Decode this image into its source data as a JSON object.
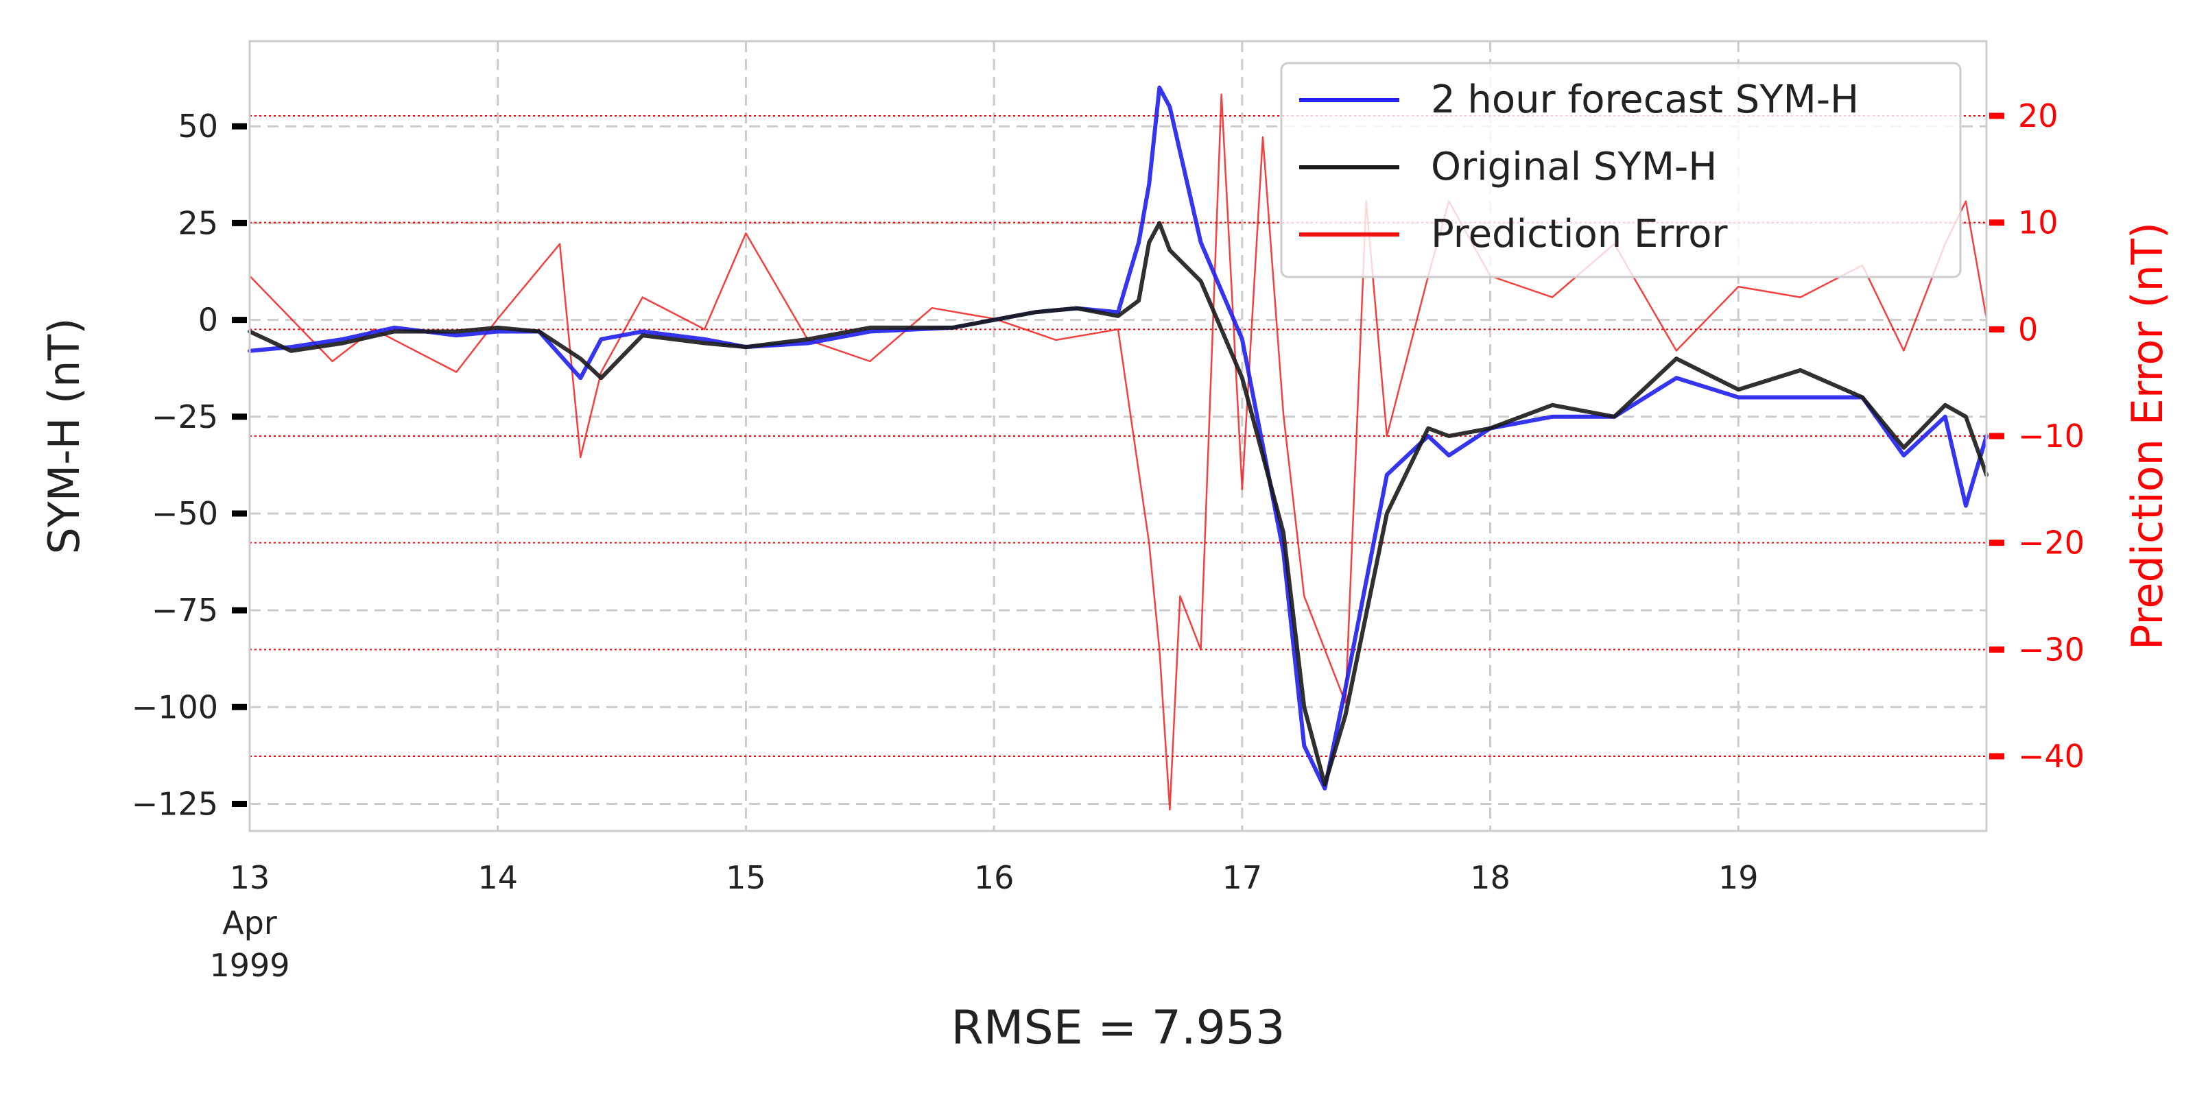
{
  "chart_data": {
    "type": "line",
    "title": "",
    "xlabel": "RMSE = 7.953",
    "ylabel": "SYM-H (nT)",
    "ylabel_right": "Prediction Error (nT)",
    "x_ticks": [
      {
        "value": "1999-04-13",
        "label": "13",
        "sublabel": "Apr\n1999"
      },
      {
        "value": "1999-04-14",
        "label": "14"
      },
      {
        "value": "1999-04-15",
        "label": "15"
      },
      {
        "value": "1999-04-16",
        "label": "16"
      },
      {
        "value": "1999-04-17",
        "label": "17"
      },
      {
        "value": "1999-04-18",
        "label": "18"
      },
      {
        "value": "1999-04-19",
        "label": "19"
      }
    ],
    "x_range": [
      "1999-04-13T00:00",
      "1999-04-20T00:00"
    ],
    "ylim": [
      -132,
      72
    ],
    "yticks": [
      50,
      25,
      0,
      -25,
      -50,
      -75,
      -100,
      -125
    ],
    "ytick_labels": [
      "50",
      "25",
      "0",
      "−25",
      "−50",
      "−75",
      "−100",
      "−125"
    ],
    "ylim_right": [
      -47,
      27
    ],
    "yticks_right": [
      20,
      10,
      0,
      -10,
      -20,
      -30,
      -40
    ],
    "ytick_labels_right": [
      "20",
      "10",
      "0",
      "−10",
      "−20",
      "−30",
      "−40"
    ],
    "grid": true,
    "legend_position": "top-right",
    "colors": {
      "forecast": "#1f1fee",
      "original": "#1a1a1a",
      "error": "#ee1111",
      "right_axis": "#ff0000",
      "grid": "#cccccc"
    },
    "series": [
      {
        "name": "2 hour forecast SYM-H",
        "axis": "left",
        "x": [
          "1999-04-13T00:00",
          "1999-04-13T04:00",
          "1999-04-13T09:00",
          "1999-04-13T14:00",
          "1999-04-13T20:00",
          "1999-04-14T00:00",
          "1999-04-14T04:00",
          "1999-04-14T08:00",
          "1999-04-14T10:00",
          "1999-04-14T14:00",
          "1999-04-14T20:00",
          "1999-04-15T00:00",
          "1999-04-15T06:00",
          "1999-04-15T12:00",
          "1999-04-15T20:00",
          "1999-04-16T00:00",
          "1999-04-16T04:00",
          "1999-04-16T08:00",
          "1999-04-16T12:00",
          "1999-04-16T14:00",
          "1999-04-16T15:00",
          "1999-04-16T16:00",
          "1999-04-16T17:00",
          "1999-04-16T20:00",
          "1999-04-17T00:00",
          "1999-04-17T04:00",
          "1999-04-17T06:00",
          "1999-04-17T08:00",
          "1999-04-17T10:00",
          "1999-04-17T14:00",
          "1999-04-17T18:00",
          "1999-04-17T20:00",
          "1999-04-18T00:00",
          "1999-04-18T06:00",
          "1999-04-18T12:00",
          "1999-04-18T18:00",
          "1999-04-19T00:00",
          "1999-04-19T06:00",
          "1999-04-19T12:00",
          "1999-04-19T16:00",
          "1999-04-19T20:00",
          "1999-04-19T22:00",
          "1999-04-20T00:00"
        ],
        "values": [
          -8,
          -7,
          -5,
          -2,
          -4,
          -3,
          -3,
          -15,
          -5,
          -3,
          -5,
          -7,
          -6,
          -3,
          -2,
          0,
          2,
          3,
          2,
          20,
          35,
          60,
          55,
          20,
          -5,
          -60,
          -110,
          -121,
          -95,
          -40,
          -30,
          -35,
          -28,
          -25,
          -25,
          -15,
          -20,
          -20,
          -20,
          -35,
          -25,
          -48,
          -30
        ]
      },
      {
        "name": "Original SYM-H",
        "axis": "left",
        "x": [
          "1999-04-13T00:00",
          "1999-04-13T04:00",
          "1999-04-13T09:00",
          "1999-04-13T14:00",
          "1999-04-13T20:00",
          "1999-04-14T00:00",
          "1999-04-14T04:00",
          "1999-04-14T08:00",
          "1999-04-14T10:00",
          "1999-04-14T14:00",
          "1999-04-14T20:00",
          "1999-04-15T00:00",
          "1999-04-15T06:00",
          "1999-04-15T12:00",
          "1999-04-15T20:00",
          "1999-04-16T00:00",
          "1999-04-16T04:00",
          "1999-04-16T08:00",
          "1999-04-16T12:00",
          "1999-04-16T14:00",
          "1999-04-16T15:00",
          "1999-04-16T16:00",
          "1999-04-16T17:00",
          "1999-04-16T20:00",
          "1999-04-17T00:00",
          "1999-04-17T04:00",
          "1999-04-17T06:00",
          "1999-04-17T08:00",
          "1999-04-17T10:00",
          "1999-04-17T14:00",
          "1999-04-17T18:00",
          "1999-04-17T20:00",
          "1999-04-18T00:00",
          "1999-04-18T06:00",
          "1999-04-18T12:00",
          "1999-04-18T18:00",
          "1999-04-19T00:00",
          "1999-04-19T06:00",
          "1999-04-19T12:00",
          "1999-04-19T16:00",
          "1999-04-19T20:00",
          "1999-04-19T22:00",
          "1999-04-20T00:00"
        ],
        "values": [
          -3,
          -8,
          -6,
          -3,
          -3,
          -2,
          -3,
          -10,
          -15,
          -4,
          -6,
          -7,
          -5,
          -2,
          -2,
          0,
          2,
          3,
          1,
          5,
          20,
          25,
          18,
          10,
          -15,
          -55,
          -100,
          -120,
          -102,
          -50,
          -28,
          -30,
          -28,
          -22,
          -25,
          -10,
          -18,
          -13,
          -20,
          -33,
          -22,
          -25,
          -40
        ]
      },
      {
        "name": "Prediction Error",
        "axis": "right",
        "x": [
          "1999-04-13T00:00",
          "1999-04-13T04:00",
          "1999-04-13T08:00",
          "1999-04-13T12:00",
          "1999-04-13T16:00",
          "1999-04-13T20:00",
          "1999-04-14T00:00",
          "1999-04-14T06:00",
          "1999-04-14T08:00",
          "1999-04-14T10:00",
          "1999-04-14T14:00",
          "1999-04-14T20:00",
          "1999-04-15T00:00",
          "1999-04-15T06:00",
          "1999-04-15T12:00",
          "1999-04-15T18:00",
          "1999-04-16T00:00",
          "1999-04-16T06:00",
          "1999-04-16T12:00",
          "1999-04-16T15:00",
          "1999-04-16T16:00",
          "1999-04-16T17:00",
          "1999-04-16T18:00",
          "1999-04-16T20:00",
          "1999-04-16T22:00",
          "1999-04-17T00:00",
          "1999-04-17T02:00",
          "1999-04-17T04:00",
          "1999-04-17T06:00",
          "1999-04-17T08:00",
          "1999-04-17T10:00",
          "1999-04-17T12:00",
          "1999-04-17T14:00",
          "1999-04-17T18:00",
          "1999-04-17T20:00",
          "1999-04-18T00:00",
          "1999-04-18T06:00",
          "1999-04-18T12:00",
          "1999-04-18T18:00",
          "1999-04-19T00:00",
          "1999-04-19T06:00",
          "1999-04-19T12:00",
          "1999-04-19T16:00",
          "1999-04-19T20:00",
          "1999-04-19T22:00",
          "1999-04-20T00:00"
        ],
        "values": [
          5,
          1,
          -3,
          0,
          -2,
          -4,
          1,
          8,
          -12,
          -4,
          3,
          0,
          9,
          -1,
          -3,
          2,
          1,
          -1,
          0,
          -20,
          -30,
          -45,
          -25,
          -30,
          22,
          -15,
          18,
          -8,
          -25,
          -30,
          -35,
          12,
          -10,
          5,
          12,
          5,
          3,
          8,
          -2,
          4,
          3,
          6,
          -2,
          8,
          12,
          1
        ]
      }
    ]
  },
  "legend": {
    "items": [
      "2 hour forecast SYM-H",
      "Original SYM-H",
      "Prediction Error"
    ]
  }
}
